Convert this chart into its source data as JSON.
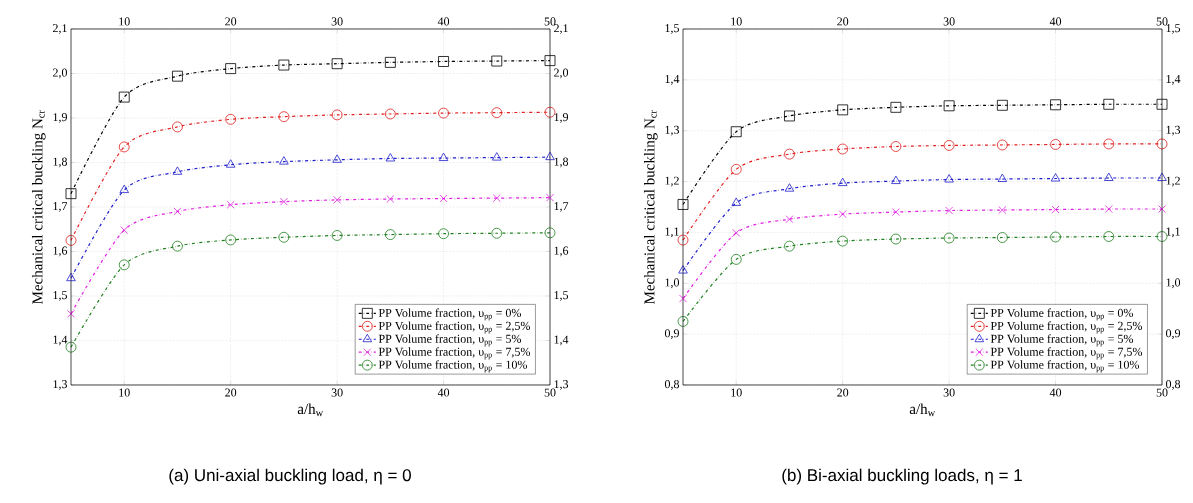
{
  "chart_data": [
    {
      "type": "line",
      "xlabel": "a/h$_{w}$",
      "ylabel": "Mechanical critical buckling N$_{cr}$",
      "x": [
        5,
        10,
        15,
        20,
        25,
        30,
        35,
        40,
        45,
        50
      ],
      "xlim": [
        5,
        50
      ],
      "xticks": [
        10,
        20,
        30,
        40,
        50
      ],
      "x2lim": [
        5,
        50
      ],
      "x2ticks": [
        10,
        20,
        30,
        40,
        50
      ],
      "ylim": [
        1.3,
        2.1
      ],
      "yticks": [
        {
          "value": 1.3,
          "label": "1,3"
        },
        {
          "value": 1.4,
          "label": "1,4"
        },
        {
          "value": 1.5,
          "label": "1,5"
        },
        {
          "value": 1.6,
          "label": "1,6"
        },
        {
          "value": 1.7,
          "label": "1,7"
        },
        {
          "value": 1.8,
          "label": "1,8"
        },
        {
          "value": 1.9,
          "label": "1,9"
        },
        {
          "value": 2.0,
          "label": "2,0"
        },
        {
          "value": 2.1,
          "label": "2,1"
        }
      ],
      "y2lim": [
        1.3,
        2.1
      ],
      "y2ticks": [
        {
          "value": 1.3,
          "label": "1,3"
        },
        {
          "value": 1.4,
          "label": "1,4"
        },
        {
          "value": 1.5,
          "label": "1,5"
        },
        {
          "value": 1.6,
          "label": "1,6"
        },
        {
          "value": 1.7,
          "label": "1,7"
        },
        {
          "value": 1.8,
          "label": "1,8"
        },
        {
          "value": 1.9,
          "label": "1,9"
        },
        {
          "value": 2.0,
          "label": "2,0"
        },
        {
          "value": 2.1,
          "label": "2,1"
        }
      ],
      "series": [
        {
          "name": "PP Volume fraction, υ$_{pp}$ = 0%",
          "color": "#000000",
          "marker": "square",
          "values": [
            1.73,
            1.947,
            1.994,
            2.011,
            2.019,
            2.022,
            2.025,
            2.027,
            2.028,
            2.029
          ]
        },
        {
          "name": "PP Volume fraction, υ$_{pp}$ = 2,5%",
          "color": "#e02020",
          "marker": "circle",
          "values": [
            1.625,
            1.835,
            1.88,
            1.897,
            1.903,
            1.907,
            1.909,
            1.911,
            1.912,
            1.913
          ]
        },
        {
          "name": "PP Volume fraction, υ$_{pp}$ = 5%",
          "color": "#1f1fcc",
          "marker": "triangle",
          "values": [
            1.54,
            1.738,
            1.779,
            1.795,
            1.802,
            1.806,
            1.809,
            1.81,
            1.811,
            1.812
          ]
        },
        {
          "name": "PP Volume fraction, υ$_{pp}$ = 7,5%",
          "color": "#e020e0",
          "marker": "cross",
          "values": [
            1.46,
            1.648,
            1.69,
            1.705,
            1.712,
            1.716,
            1.718,
            1.719,
            1.72,
            1.721
          ]
        },
        {
          "name": "PP Volume fraction, υ$_{pp}$ = 10%",
          "color": "#208020",
          "marker": "circle",
          "values": [
            1.385,
            1.57,
            1.612,
            1.626,
            1.632,
            1.636,
            1.638,
            1.64,
            1.641,
            1.642
          ]
        }
      ],
      "grid": true,
      "legend": "bottom right",
      "line_style": "dashdot",
      "annotations": [
        "(a) Uni-axial buckling load, η = 0"
      ]
    },
    {
      "type": "line",
      "xlabel": "a/h$_{w}$",
      "ylabel": "Mechanical critical buckling N$_{cr}$",
      "x": [
        5,
        10,
        15,
        20,
        25,
        30,
        35,
        40,
        45,
        50
      ],
      "xlim": [
        5,
        50
      ],
      "xticks": [
        10,
        20,
        30,
        40,
        50
      ],
      "x2lim": [
        5,
        50
      ],
      "x2ticks": [
        10,
        20,
        30,
        40,
        50
      ],
      "ylim": [
        0.8,
        1.5
      ],
      "yticks": [
        {
          "value": 0.8,
          "label": "0,8"
        },
        {
          "value": 0.9,
          "label": "0,9"
        },
        {
          "value": 1.0,
          "label": "1,0"
        },
        {
          "value": 1.1,
          "label": "1,1"
        },
        {
          "value": 1.2,
          "label": "1,2"
        },
        {
          "value": 1.3,
          "label": "1,3"
        },
        {
          "value": 1.4,
          "label": "1,4"
        },
        {
          "value": 1.5,
          "label": "1,5"
        }
      ],
      "y2lim": [
        0.8,
        1.5
      ],
      "y2ticks": [
        {
          "value": 0.8,
          "label": "0,8"
        },
        {
          "value": 0.9,
          "label": "0,9"
        },
        {
          "value": 1.0,
          "label": "1,0"
        },
        {
          "value": 1.1,
          "label": "1,1"
        },
        {
          "value": 1.2,
          "label": "1,2"
        },
        {
          "value": 1.3,
          "label": "1,3"
        },
        {
          "value": 1.4,
          "label": "1,4"
        },
        {
          "value": 1.5,
          "label": "1,5"
        }
      ],
      "series": [
        {
          "name": "PP Volume fraction, υ$_{pp}$ = 0%",
          "color": "#000000",
          "marker": "square",
          "values": [
            1.155,
            1.298,
            1.329,
            1.341,
            1.346,
            1.349,
            1.35,
            1.351,
            1.352,
            1.352
          ]
        },
        {
          "name": "PP Volume fraction, υ$_{pp}$ = 2,5%",
          "color": "#e02020",
          "marker": "circle",
          "values": [
            1.085,
            1.224,
            1.254,
            1.264,
            1.269,
            1.271,
            1.272,
            1.273,
            1.274,
            1.274
          ]
        },
        {
          "name": "PP Volume fraction, υ$_{pp}$ = 5%",
          "color": "#1f1fcc",
          "marker": "triangle",
          "values": [
            1.025,
            1.158,
            1.186,
            1.197,
            1.201,
            1.204,
            1.205,
            1.206,
            1.207,
            1.207
          ]
        },
        {
          "name": "PP Volume fraction, υ$_{pp}$ = 7,5%",
          "color": "#e020e0",
          "marker": "cross",
          "values": [
            0.97,
            1.099,
            1.126,
            1.136,
            1.14,
            1.143,
            1.144,
            1.145,
            1.146,
            1.146
          ]
        },
        {
          "name": "PP Volume fraction, υ$_{pp}$ = 10%",
          "color": "#208020",
          "marker": "circle",
          "values": [
            0.925,
            1.047,
            1.073,
            1.083,
            1.087,
            1.089,
            1.09,
            1.091,
            1.092,
            1.092
          ]
        }
      ],
      "grid": true,
      "legend": "bottom right",
      "line_style": "dashdot",
      "annotations": [
        "(b) Bi-axial buckling loads, η = 1"
      ]
    }
  ]
}
